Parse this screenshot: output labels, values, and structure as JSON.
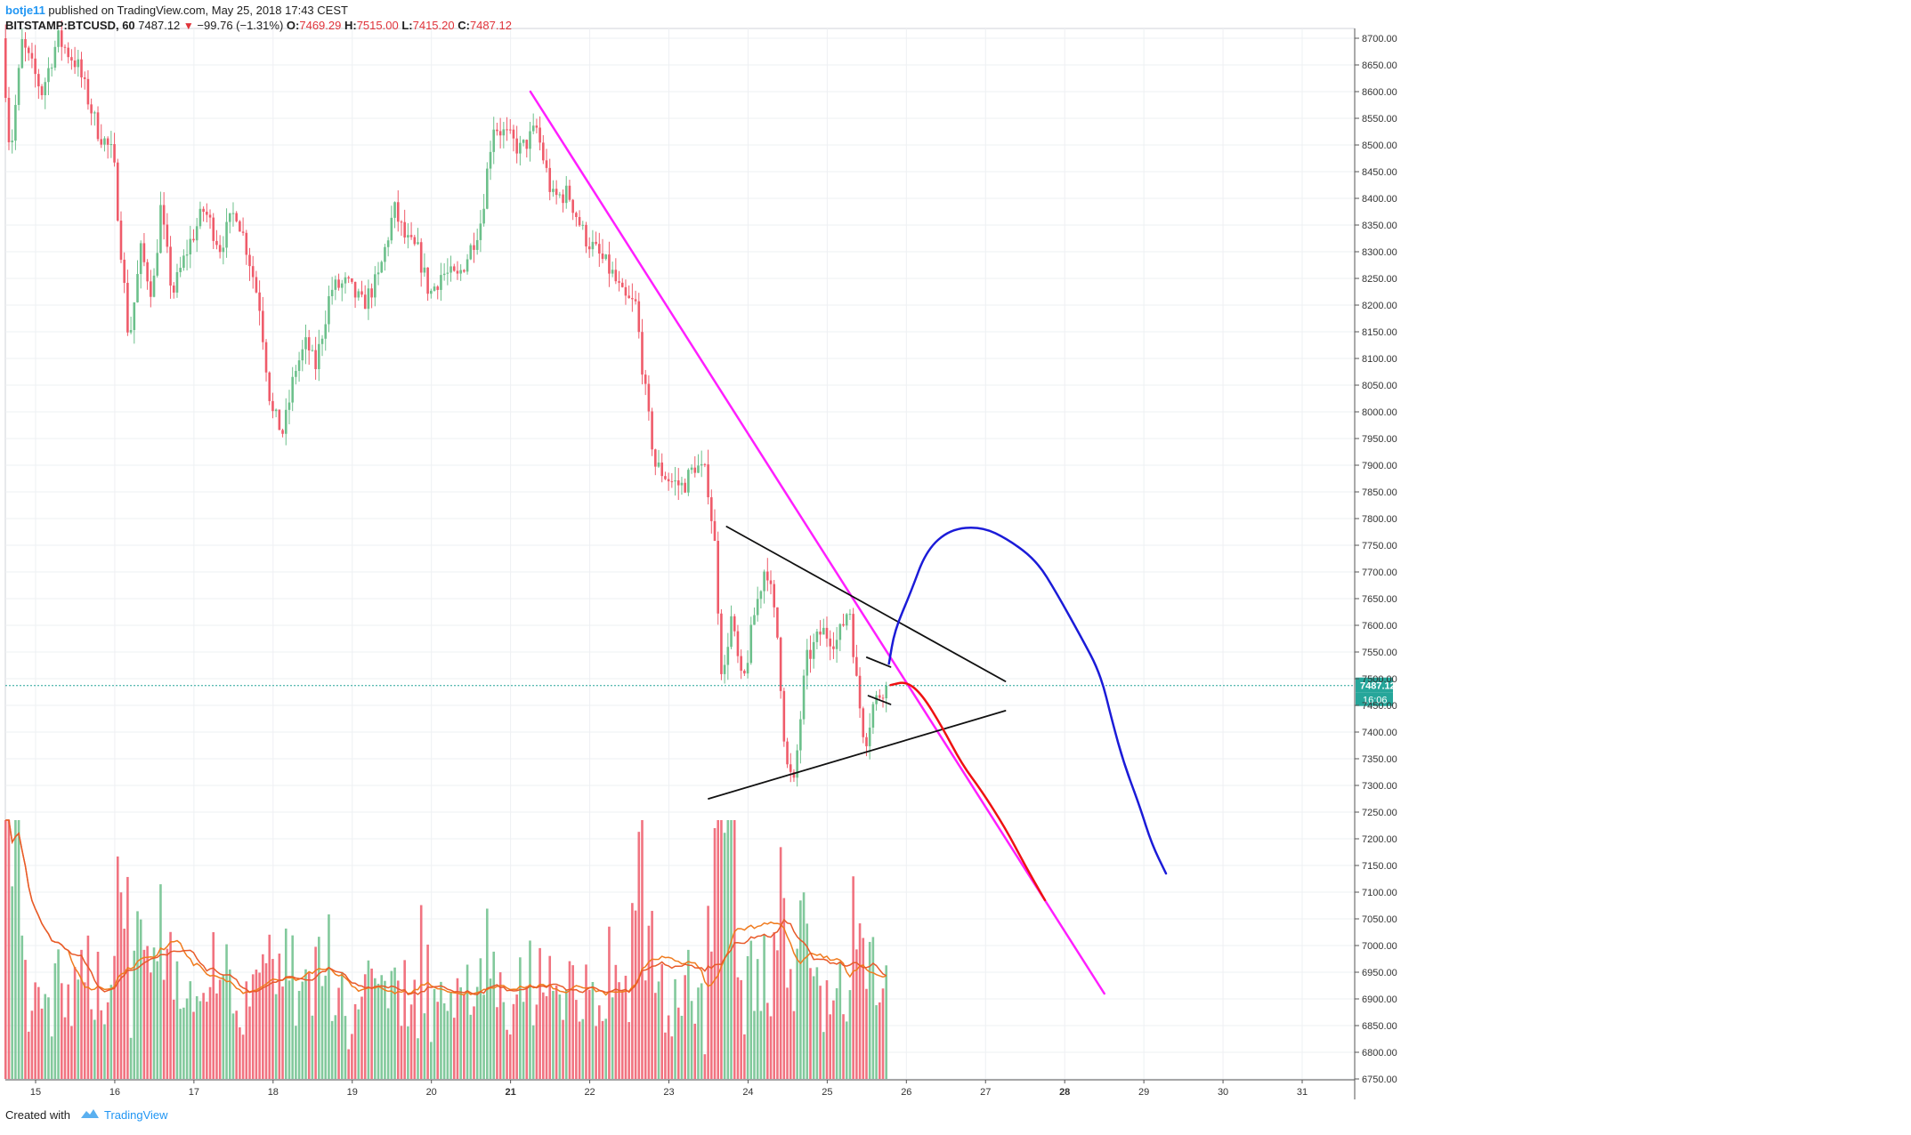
{
  "header": {
    "author": "botje11",
    "published": "published on TradingView.com, May 25, 2018 17:43 CEST",
    "symbol": "BITSTAMP:BTCUSD, 60",
    "last": "7487.12",
    "change": "−99.76 (−1.31%)",
    "open_label": "O:",
    "open": "7469.29",
    "high_label": "H:",
    "high": "7515.00",
    "low_label": "L:",
    "low": "7415.20",
    "close_label": "C:",
    "close": "7487.12"
  },
  "footer": {
    "created": "Created with",
    "brand": "TradingView"
  },
  "colors": {
    "up": "#6cc08b",
    "down": "#ef5b6a",
    "trendline": "#ff1fff",
    "blue_path": "#1b1bd8",
    "red_path": "#ee1111",
    "ma": "#f07b1e",
    "ma2": "#e85a2a",
    "grid": "#eef0f3",
    "lastprice": "#26a69a"
  },
  "chart_data": {
    "type": "candlestick",
    "symbol": "BITSTAMP:BTCUSD",
    "interval": "60",
    "ylim": [
      6750,
      8725
    ],
    "y_ticks": [
      "8700.00",
      "8650.00",
      "8600.00",
      "8550.00",
      "8500.00",
      "8450.00",
      "8400.00",
      "8350.00",
      "8300.00",
      "8250.00",
      "8200.00",
      "8150.00",
      "8100.00",
      "8050.00",
      "8000.00",
      "7950.00",
      "7900.00",
      "7850.00",
      "7800.00",
      "7750.00",
      "7700.00",
      "7650.00",
      "7600.00",
      "7550.00",
      "7500.00",
      "7450.00",
      "7400.00",
      "7350.00",
      "7300.00",
      "7250.00",
      "7200.00",
      "7150.00",
      "7100.00",
      "7050.00",
      "7000.00",
      "6950.00",
      "6900.00",
      "6850.00",
      "6800.00",
      "6750.00"
    ],
    "x_ticks": [
      "15",
      "16",
      "17",
      "18",
      "19",
      "20",
      "21",
      "22",
      "23",
      "24",
      "25",
      "26",
      "27",
      "28",
      "29",
      "30",
      "31"
    ],
    "x_tick_days": [
      15,
      16,
      17,
      18,
      19,
      20,
      21,
      22,
      23,
      24,
      25,
      26,
      27,
      28,
      29,
      30,
      31
    ],
    "x_range_days": [
      14.6,
      31.9
    ],
    "last_price": 7487.12,
    "last_price_label": "7487.12",
    "countdown": "16:06",
    "keypoints": [
      {
        "t": 14.6,
        "p": 8700
      },
      {
        "t": 14.7,
        "p": 8480
      },
      {
        "t": 14.85,
        "p": 8690
      },
      {
        "t": 15.1,
        "p": 8600
      },
      {
        "t": 15.3,
        "p": 8700
      },
      {
        "t": 15.55,
        "p": 8650
      },
      {
        "t": 15.8,
        "p": 8530
      },
      {
        "t": 16.0,
        "p": 8480
      },
      {
        "t": 16.2,
        "p": 8130
      },
      {
        "t": 16.35,
        "p": 8300
      },
      {
        "t": 16.5,
        "p": 8220
      },
      {
        "t": 16.6,
        "p": 8380
      },
      {
        "t": 16.75,
        "p": 8220
      },
      {
        "t": 16.95,
        "p": 8310
      },
      {
        "t": 17.15,
        "p": 8380
      },
      {
        "t": 17.35,
        "p": 8310
      },
      {
        "t": 17.55,
        "p": 8380
      },
      {
        "t": 17.7,
        "p": 8300
      },
      {
        "t": 17.85,
        "p": 8200
      },
      {
        "t": 18.0,
        "p": 8000
      },
      {
        "t": 18.15,
        "p": 7960
      },
      {
        "t": 18.3,
        "p": 8080
      },
      {
        "t": 18.45,
        "p": 8130
      },
      {
        "t": 18.55,
        "p": 8080
      },
      {
        "t": 18.75,
        "p": 8230
      },
      {
        "t": 18.95,
        "p": 8240
      },
      {
        "t": 19.15,
        "p": 8200
      },
      {
        "t": 19.35,
        "p": 8250
      },
      {
        "t": 19.55,
        "p": 8380
      },
      {
        "t": 19.7,
        "p": 8320
      },
      {
        "t": 19.85,
        "p": 8300
      },
      {
        "t": 20.0,
        "p": 8220
      },
      {
        "t": 20.15,
        "p": 8260
      },
      {
        "t": 20.35,
        "p": 8250
      },
      {
        "t": 20.5,
        "p": 8300
      },
      {
        "t": 20.65,
        "p": 8360
      },
      {
        "t": 20.8,
        "p": 8540
      },
      {
        "t": 20.95,
        "p": 8520
      },
      {
        "t": 21.15,
        "p": 8490
      },
      {
        "t": 21.35,
        "p": 8530
      },
      {
        "t": 21.55,
        "p": 8400
      },
      {
        "t": 21.75,
        "p": 8410
      },
      {
        "t": 21.95,
        "p": 8330
      },
      {
        "t": 22.1,
        "p": 8300
      },
      {
        "t": 22.3,
        "p": 8260
      },
      {
        "t": 22.45,
        "p": 8210
      },
      {
        "t": 22.6,
        "p": 8200
      },
      {
        "t": 22.75,
        "p": 8000
      },
      {
        "t": 22.85,
        "p": 7900
      },
      {
        "t": 23.05,
        "p": 7870
      },
      {
        "t": 23.2,
        "p": 7860
      },
      {
        "t": 23.35,
        "p": 7900
      },
      {
        "t": 23.5,
        "p": 7880
      },
      {
        "t": 23.6,
        "p": 7750
      },
      {
        "t": 23.7,
        "p": 7480
      },
      {
        "t": 23.8,
        "p": 7620
      },
      {
        "t": 23.95,
        "p": 7480
      },
      {
        "t": 24.1,
        "p": 7620
      },
      {
        "t": 24.25,
        "p": 7720
      },
      {
        "t": 24.4,
        "p": 7570
      },
      {
        "t": 24.5,
        "p": 7340
      },
      {
        "t": 24.6,
        "p": 7300
      },
      {
        "t": 24.75,
        "p": 7530
      },
      {
        "t": 24.95,
        "p": 7590
      },
      {
        "t": 25.15,
        "p": 7570
      },
      {
        "t": 25.3,
        "p": 7640
      },
      {
        "t": 25.4,
        "p": 7480
      },
      {
        "t": 25.5,
        "p": 7380
      },
      {
        "t": 25.6,
        "p": 7450
      },
      {
        "t": 25.74,
        "p": 7487
      }
    ],
    "volume_ylim": [
      0,
      1
    ],
    "annotations": [
      {
        "name": "downtrend-line",
        "color": "#ff1fff",
        "points": [
          [
            21.25,
            8600
          ],
          [
            28.5,
            6910
          ]
        ]
      },
      {
        "name": "triangle-upper",
        "color": "#111111",
        "points": [
          [
            23.73,
            7785
          ],
          [
            27.25,
            7495
          ]
        ]
      },
      {
        "name": "triangle-lower",
        "color": "#111111",
        "points": [
          [
            23.5,
            7275
          ],
          [
            27.25,
            7440
          ]
        ]
      },
      {
        "name": "flag-upper",
        "color": "#111111",
        "points": [
          [
            25.5,
            7540
          ],
          [
            25.8,
            7522
          ]
        ]
      },
      {
        "name": "flag-lower",
        "color": "#111111",
        "points": [
          [
            25.52,
            7468
          ],
          [
            25.8,
            7452
          ]
        ]
      },
      {
        "name": "bullish-projection",
        "color": "#1b1bd8",
        "points": [
          [
            25.78,
            7528
          ],
          [
            25.85,
            7590
          ],
          [
            26.05,
            7660
          ],
          [
            26.25,
            7740
          ],
          [
            26.55,
            7780
          ],
          [
            26.95,
            7785
          ],
          [
            27.3,
            7760
          ],
          [
            27.65,
            7720
          ],
          [
            27.9,
            7660
          ],
          [
            28.2,
            7580
          ],
          [
            28.45,
            7510
          ],
          [
            28.6,
            7420
          ],
          [
            28.75,
            7340
          ],
          [
            28.95,
            7260
          ],
          [
            29.1,
            7190
          ],
          [
            29.28,
            7135
          ]
        ]
      },
      {
        "name": "bearish-projection",
        "color": "#ee1111",
        "points": [
          [
            25.8,
            7488
          ],
          [
            26.0,
            7495
          ],
          [
            26.2,
            7470
          ],
          [
            26.45,
            7410
          ],
          [
            26.7,
            7340
          ],
          [
            26.95,
            7290
          ],
          [
            27.25,
            7220
          ],
          [
            27.5,
            7150
          ],
          [
            27.75,
            7085
          ]
        ]
      }
    ]
  }
}
